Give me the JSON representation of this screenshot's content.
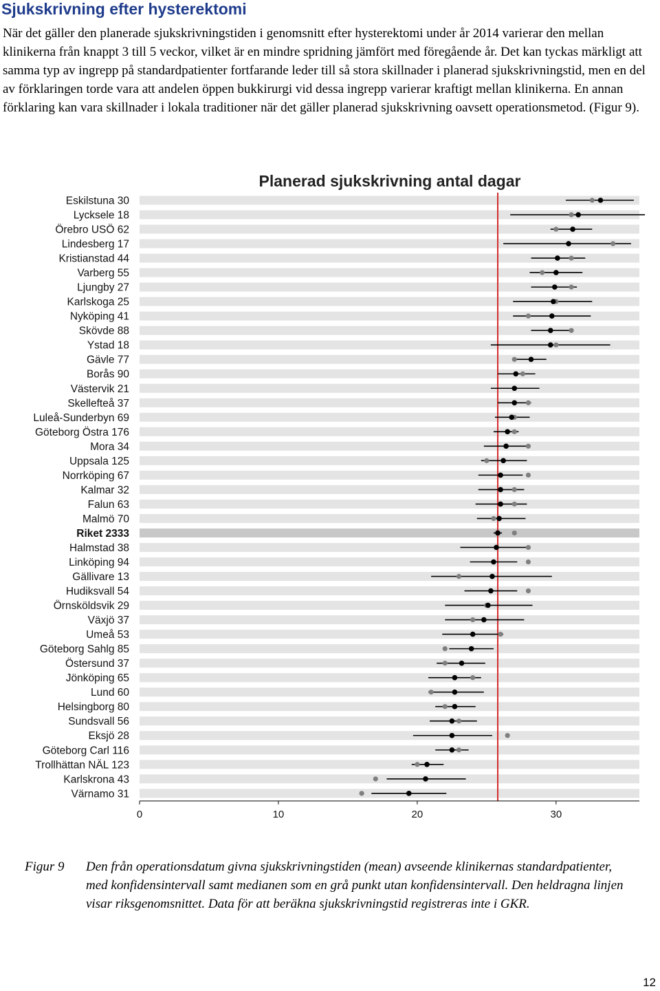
{
  "document": {
    "heading": "Sjukskrivning efter hysterektomi",
    "paragraph": "När det gäller den planerade sjukskrivningstiden i genomsnitt efter hysterektomi under år 2014 varierar den mellan klinikerna från knappt 3 till 5 veckor, vilket är en mindre spridning jämfört med föregående år. Det kan tyckas märkligt att samma typ av ingrepp på standardpatienter fortfarande leder till så stora skillnader i planerad sjukskrivningstid, men en del av förklaringen torde vara att andelen öppen bukkirurgi vid dessa ingrepp varierar kraftigt mellan klinikerna. En annan förklaring kan vara skillnader i lokala traditioner när det gäller planerad sjukskrivning oavsett operationsmetod. (Figur 9).",
    "caption_label": "Figur 9",
    "caption_text": "Den från operationsdatum givna sjukskrivningstiden (mean) avseende klinikernas standardpatienter, med konfidensintervall samt medianen som en grå punkt utan konfidensintervall. Den heldragna linjen visar riksgenomsnittet. Data för att beräkna sjukskrivningstid registreras inte i GKR.",
    "page_number": "12"
  },
  "chart_data": {
    "type": "scatter",
    "title": "Planerad sjukskrivning antal dagar",
    "xlabel": "",
    "ylabel": "",
    "xlim": [
      0,
      36
    ],
    "xticks": [
      0,
      10,
      20,
      30
    ],
    "reference_line": 25.8,
    "colors": {
      "mean": "#000000",
      "median": "#7f7f7f",
      "reference": "#d42a2a",
      "band": "#e4e4e4",
      "band_highlight": "#c8c8c8"
    },
    "highlight": "Riket 2333",
    "rows": [
      {
        "label": "Eskilstuna 30",
        "mean": 33.2,
        "lo": 30.7,
        "hi": 35.6,
        "median": 32.6
      },
      {
        "label": "Lycksele 18",
        "mean": 31.6,
        "lo": 26.7,
        "hi": 36.4,
        "median": 31.1
      },
      {
        "label": "Örebro USÖ 62",
        "mean": 31.2,
        "lo": 29.6,
        "hi": 32.6,
        "median": 30.0
      },
      {
        "label": "Lindesberg 17",
        "mean": 30.9,
        "lo": 26.2,
        "hi": 35.4,
        "median": 34.1
      },
      {
        "label": "Kristianstad 44",
        "mean": 30.1,
        "lo": 28.2,
        "hi": 32.1,
        "median": 31.1
      },
      {
        "label": "Varberg 55",
        "mean": 30.0,
        "lo": 28.1,
        "hi": 31.9,
        "median": 29.0
      },
      {
        "label": "Ljungby 27",
        "mean": 29.9,
        "lo": 28.2,
        "hi": 31.5,
        "median": 31.1
      },
      {
        "label": "Karlskoga 25",
        "mean": 29.8,
        "lo": 26.9,
        "hi": 32.6,
        "median": 30.0
      },
      {
        "label": "Nyköping 41",
        "mean": 29.7,
        "lo": 26.9,
        "hi": 32.5,
        "median": 28.0
      },
      {
        "label": "Skövde 88",
        "mean": 29.6,
        "lo": 28.2,
        "hi": 31.0,
        "median": 31.1
      },
      {
        "label": "Ystad 18",
        "mean": 29.6,
        "lo": 25.3,
        "hi": 33.9,
        "median": 30.0
      },
      {
        "label": "Gävle 77",
        "mean": 28.2,
        "lo": 27.1,
        "hi": 29.3,
        "median": 27.0
      },
      {
        "label": "Borås 90",
        "mean": 27.1,
        "lo": 25.8,
        "hi": 28.5,
        "median": 27.6
      },
      {
        "label": "Västervik 21",
        "mean": 27.0,
        "lo": 25.3,
        "hi": 28.8,
        "median": 27.0
      },
      {
        "label": "Skellefteå 37",
        "mean": 27.0,
        "lo": 25.8,
        "hi": 28.2,
        "median": 28.0
      },
      {
        "label": "Luleå-Sunderbyn 69",
        "mean": 26.8,
        "lo": 25.6,
        "hi": 28.1,
        "median": 27.0
      },
      {
        "label": "Göteborg Östra 176",
        "mean": 26.5,
        "lo": 25.5,
        "hi": 27.3,
        "median": 27.0
      },
      {
        "label": "Mora 34",
        "mean": 26.4,
        "lo": 24.8,
        "hi": 27.9,
        "median": 28.0
      },
      {
        "label": "Uppsala 125",
        "mean": 26.2,
        "lo": 24.6,
        "hi": 27.9,
        "median": 25.0
      },
      {
        "label": "Norrköping 67",
        "mean": 26.0,
        "lo": 24.4,
        "hi": 27.6,
        "median": 28.0
      },
      {
        "label": "Kalmar 32",
        "mean": 26.0,
        "lo": 24.4,
        "hi": 27.7,
        "median": 27.0
      },
      {
        "label": "Falun 63",
        "mean": 26.0,
        "lo": 24.2,
        "hi": 27.9,
        "median": 27.0
      },
      {
        "label": "Malmö 70",
        "mean": 25.9,
        "lo": 24.3,
        "hi": 27.8,
        "median": 25.5
      },
      {
        "label": "Riket 2333",
        "mean": 25.8,
        "lo": 25.5,
        "hi": 26.1,
        "median": 27.0
      },
      {
        "label": "Halmstad 38",
        "mean": 25.7,
        "lo": 23.1,
        "hi": 28.1,
        "median": 28.0
      },
      {
        "label": "Linköping 94",
        "mean": 25.5,
        "lo": 23.8,
        "hi": 27.2,
        "median": 28.0
      },
      {
        "label": "Gällivare 13",
        "mean": 25.4,
        "lo": 21.0,
        "hi": 29.7,
        "median": 23.0
      },
      {
        "label": "Hudiksvall 54",
        "mean": 25.3,
        "lo": 23.4,
        "hi": 27.2,
        "median": 28.0
      },
      {
        "label": "Örnsköldsvik 29",
        "mean": 25.1,
        "lo": 22.0,
        "hi": 28.3,
        "median": 25.0
      },
      {
        "label": "Växjö 37",
        "mean": 24.8,
        "lo": 22.0,
        "hi": 27.7,
        "median": 24.0
      },
      {
        "label": "Umeå 53",
        "mean": 24.0,
        "lo": 21.8,
        "hi": 26.2,
        "median": 26.0
      },
      {
        "label": "Göteborg Sahlg 85",
        "mean": 23.9,
        "lo": 22.3,
        "hi": 25.5,
        "median": 22.0
      },
      {
        "label": "Östersund 37",
        "mean": 23.2,
        "lo": 21.4,
        "hi": 24.9,
        "median": 22.0
      },
      {
        "label": "Jönköping 65",
        "mean": 22.7,
        "lo": 20.8,
        "hi": 24.6,
        "median": 24.0
      },
      {
        "label": "Lund 60",
        "mean": 22.7,
        "lo": 20.8,
        "hi": 24.8,
        "median": 21.0
      },
      {
        "label": "Helsingborg 80",
        "mean": 22.7,
        "lo": 21.3,
        "hi": 24.2,
        "median": 22.0
      },
      {
        "label": "Sundsvall 56",
        "mean": 22.5,
        "lo": 20.9,
        "hi": 24.3,
        "median": 23.0
      },
      {
        "label": "Eksjö 28",
        "mean": 22.5,
        "lo": 19.7,
        "hi": 25.4,
        "median": 26.5
      },
      {
        "label": "Göteborg Carl 116",
        "mean": 22.5,
        "lo": 21.3,
        "hi": 23.7,
        "median": 23.0
      },
      {
        "label": "Trollhättan NÄL 123",
        "mean": 20.7,
        "lo": 19.6,
        "hi": 21.9,
        "median": 20.0
      },
      {
        "label": "Karlskrona 43",
        "mean": 20.6,
        "lo": 17.8,
        "hi": 23.5,
        "median": 17.0
      },
      {
        "label": "Värnamo 31",
        "mean": 19.4,
        "lo": 16.7,
        "hi": 22.1,
        "median": 16.0
      }
    ]
  }
}
